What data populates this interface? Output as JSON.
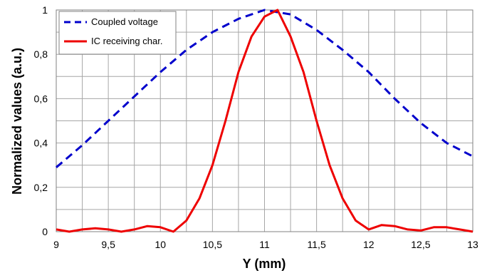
{
  "chart_data": {
    "type": "line",
    "xlabel": "Y (mm)",
    "ylabel": "Normalized values (a.u.)",
    "xlim": [
      9,
      13
    ],
    "ylim": [
      0,
      1
    ],
    "x_ticks": [
      "9",
      "9,5",
      "10",
      "10,5",
      "11",
      "11,5",
      "12",
      "12,5",
      "13"
    ],
    "y_ticks": [
      "0",
      "0,2",
      "0,4",
      "0,6",
      "0,8",
      "1"
    ],
    "grid": true,
    "legend_position": "top-left",
    "series": [
      {
        "name": "Coupled voltage",
        "color": "#0000cc",
        "style": "dashed",
        "x": [
          9.0,
          9.25,
          9.5,
          9.75,
          10.0,
          10.25,
          10.5,
          10.75,
          11.0,
          11.25,
          11.5,
          11.75,
          12.0,
          12.25,
          12.5,
          12.75,
          13.0
        ],
        "y": [
          0.29,
          0.39,
          0.5,
          0.61,
          0.72,
          0.82,
          0.9,
          0.96,
          1.0,
          0.98,
          0.91,
          0.82,
          0.72,
          0.6,
          0.49,
          0.4,
          0.34
        ]
      },
      {
        "name": "IC receiving char.",
        "color": "#ee0000",
        "style": "solid",
        "x": [
          9.0,
          9.125,
          9.25,
          9.375,
          9.5,
          9.625,
          9.75,
          9.875,
          10.0,
          10.125,
          10.25,
          10.375,
          10.5,
          10.625,
          10.75,
          10.875,
          11.0,
          11.125,
          11.25,
          11.375,
          11.5,
          11.625,
          11.75,
          11.875,
          12.0,
          12.125,
          12.25,
          12.375,
          12.5,
          12.625,
          12.75,
          12.875,
          13.0
        ],
        "y": [
          0.01,
          0.0,
          0.01,
          0.015,
          0.01,
          0.0,
          0.01,
          0.025,
          0.02,
          0.0,
          0.05,
          0.15,
          0.3,
          0.5,
          0.72,
          0.88,
          0.97,
          1.0,
          0.88,
          0.72,
          0.5,
          0.3,
          0.15,
          0.05,
          0.01,
          0.03,
          0.025,
          0.01,
          0.005,
          0.02,
          0.02,
          0.01,
          0.0
        ]
      }
    ]
  }
}
